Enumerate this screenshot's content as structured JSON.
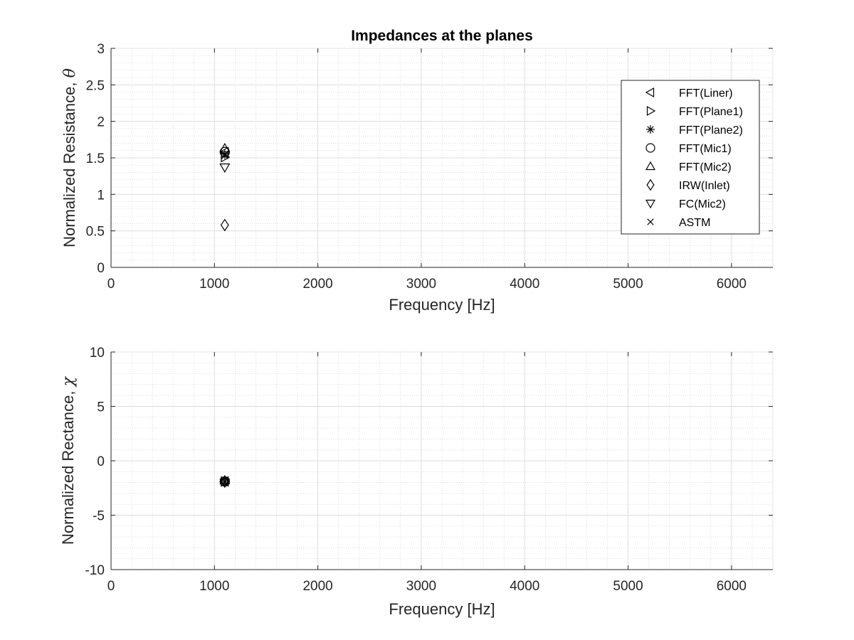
{
  "chart_data": [
    {
      "type": "scatter",
      "title": "Impedances at the planes",
      "xlabel": "Frequency [Hz]",
      "ylabel": "Normalized Resistance,",
      "ylabel_symbol": "θ",
      "xlim": [
        0,
        6400
      ],
      "ylim": [
        0,
        3
      ],
      "xticks": [
        0,
        1000,
        2000,
        3000,
        4000,
        5000,
        6000
      ],
      "yticks": [
        0,
        0.5,
        1,
        1.5,
        2,
        2.5,
        3
      ],
      "xtick_labels": [
        "0",
        "1000",
        "2000",
        "3000",
        "4000",
        "5000",
        "6000"
      ],
      "ytick_labels": [
        "0",
        "0.5",
        "1",
        "1.5",
        "2",
        "2.5",
        "3"
      ],
      "grid": "major and minor",
      "legend_position": "top-right",
      "series": [
        {
          "name": "FFT(Liner)",
          "marker": "triangle-left",
          "x": [
            1100
          ],
          "y": [
            1.58
          ]
        },
        {
          "name": "FFT(Plane1)",
          "marker": "triangle-right",
          "x": [
            1100
          ],
          "y": [
            1.51
          ]
        },
        {
          "name": "FFT(Plane2)",
          "marker": "asterisk",
          "x": [
            1100
          ],
          "y": [
            1.55
          ]
        },
        {
          "name": "FFT(Mic1)",
          "marker": "circle",
          "x": [
            1100
          ],
          "y": [
            1.58
          ]
        },
        {
          "name": "FFT(Mic2)",
          "marker": "triangle-up",
          "x": [
            1100
          ],
          "y": [
            1.63
          ]
        },
        {
          "name": "IRW(Inlet)",
          "marker": "diamond",
          "x": [
            1100
          ],
          "y": [
            0.58
          ]
        },
        {
          "name": "FC(Mic2)",
          "marker": "triangle-down",
          "x": [
            1100
          ],
          "y": [
            1.37
          ]
        },
        {
          "name": "ASTM",
          "marker": "x",
          "x": [
            1100
          ],
          "y": [
            1.53
          ]
        }
      ]
    },
    {
      "type": "scatter",
      "title": "",
      "xlabel": "Frequency [Hz]",
      "ylabel": "Normalized Rectance,",
      "ylabel_symbol": "χ",
      "xlim": [
        0,
        6400
      ],
      "ylim": [
        -10,
        10
      ],
      "xticks": [
        0,
        1000,
        2000,
        3000,
        4000,
        5000,
        6000
      ],
      "yticks": [
        -10,
        -5,
        0,
        5,
        10
      ],
      "xtick_labels": [
        "0",
        "1000",
        "2000",
        "3000",
        "4000",
        "5000",
        "6000"
      ],
      "ytick_labels": [
        "-10",
        "-5",
        "0",
        "5",
        "10"
      ],
      "grid": "major and minor",
      "series": [
        {
          "marker": "triangle-left",
          "x": [
            1100
          ],
          "y": [
            -1.9
          ]
        },
        {
          "marker": "triangle-right",
          "x": [
            1100
          ],
          "y": [
            -1.9
          ]
        },
        {
          "marker": "asterisk",
          "x": [
            1100
          ],
          "y": [
            -1.9
          ]
        },
        {
          "marker": "circle",
          "x": [
            1100
          ],
          "y": [
            -1.9
          ]
        },
        {
          "marker": "triangle-up",
          "x": [
            1100
          ],
          "y": [
            -1.8
          ]
        },
        {
          "marker": "diamond",
          "x": [
            1100
          ],
          "y": [
            -1.9
          ]
        },
        {
          "marker": "triangle-down",
          "x": [
            1100
          ],
          "y": [
            -2.0
          ]
        },
        {
          "marker": "x",
          "x": [
            1100
          ],
          "y": [
            -1.9
          ]
        }
      ]
    }
  ]
}
